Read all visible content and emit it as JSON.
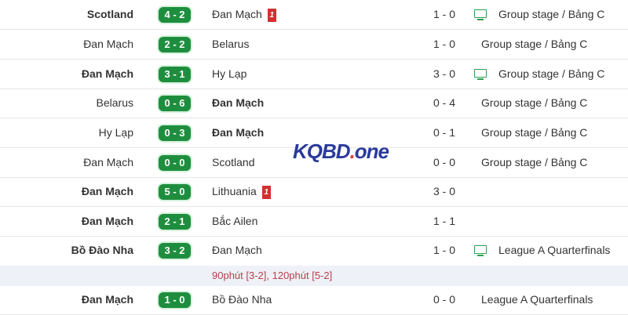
{
  "matches": [
    {
      "home": "Scotland",
      "home_bold": true,
      "score": "4 - 2",
      "away": "Đan Mạch",
      "away_bold": false,
      "away_card": "1",
      "ht": "1 - 0",
      "tv": true,
      "competition": "Group stage / Bảng C"
    },
    {
      "home": "Đan Mạch",
      "home_bold": false,
      "score": "2 - 2",
      "away": "Belarus",
      "away_bold": false,
      "ht": "1 - 0",
      "tv": false,
      "competition": "Group stage / Bảng C"
    },
    {
      "home": "Đan Mạch",
      "home_bold": true,
      "score": "3 - 1",
      "away": "Hy Lạp",
      "away_bold": false,
      "ht": "3 - 0",
      "tv": true,
      "competition": "Group stage / Bảng C"
    },
    {
      "home": "Belarus",
      "home_bold": false,
      "score": "0 - 6",
      "away": "Đan Mạch",
      "away_bold": true,
      "ht": "0 - 4",
      "tv": false,
      "competition": "Group stage / Bảng C"
    },
    {
      "home": "Hy Lạp",
      "home_bold": false,
      "score": "0 - 3",
      "away": "Đan Mạch",
      "away_bold": true,
      "ht": "0 - 1",
      "tv": false,
      "competition": "Group stage / Bảng C"
    },
    {
      "home": "Đan Mạch",
      "home_bold": false,
      "score": "0 - 0",
      "away": "Scotland",
      "away_bold": false,
      "ht": "0 - 0",
      "tv": false,
      "competition": "Group stage / Bảng C"
    },
    {
      "home": "Đan Mạch",
      "home_bold": true,
      "score": "5 - 0",
      "away": "Lithuania",
      "away_bold": false,
      "away_card": "1",
      "ht": "3 - 0",
      "tv": false,
      "competition": ""
    },
    {
      "home": "Đan Mạch",
      "home_bold": true,
      "score": "2 - 1",
      "away": "Bắc Ailen",
      "away_bold": false,
      "ht": "1 - 1",
      "tv": false,
      "competition": ""
    },
    {
      "home": "Bồ Đào Nha",
      "home_bold": true,
      "score": "3 - 2",
      "away": "Đan Mạch",
      "away_bold": false,
      "ht": "1 - 0",
      "tv": true,
      "competition": "League A Quarterfinals"
    },
    {
      "home": "Đan Mạch",
      "home_bold": true,
      "score": "1 - 0",
      "away": "Bồ Đào Nha",
      "away_bold": false,
      "ht": "0 - 0",
      "tv": false,
      "competition": "League A Quarterfinals"
    }
  ],
  "note": "90phút [3-2], 120phút [5-2]",
  "watermark": {
    "text": "KQBD",
    "dot": ".",
    "suffix": "one"
  },
  "colors": {
    "score_bg": "#1e8e3e",
    "red_card": "#d32f2f",
    "tv_icon": "#2e9e4e",
    "note_text": "#b8404a"
  }
}
